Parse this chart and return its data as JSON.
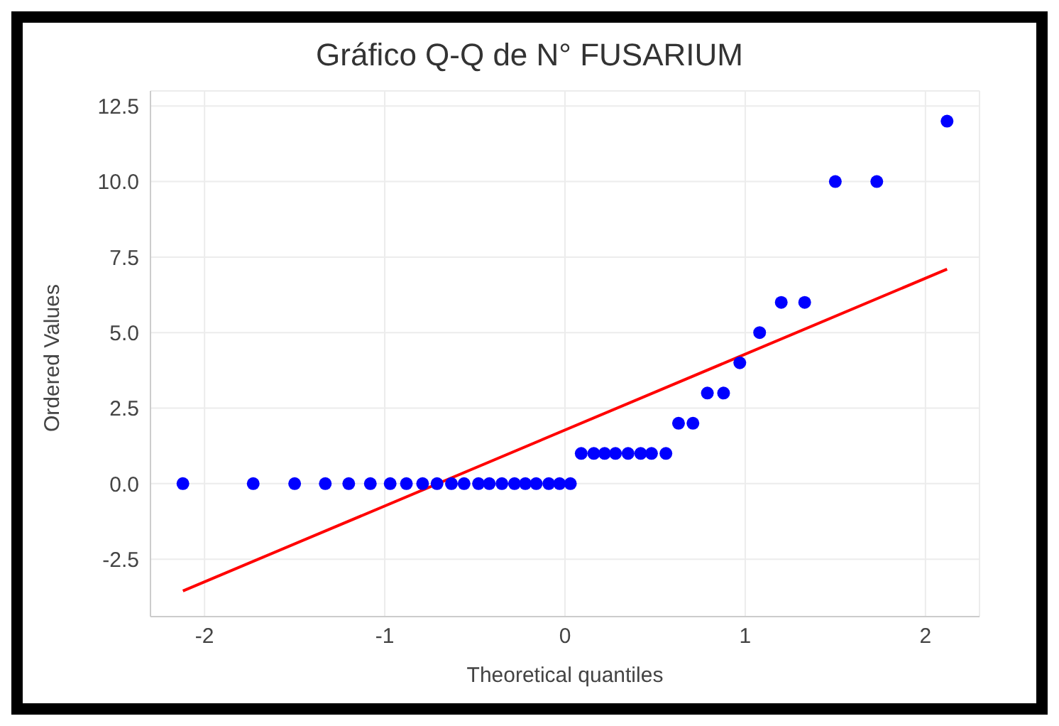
{
  "chart_data": {
    "type": "scatter",
    "title": "Gráfico Q-Q de N° FUSARIUM",
    "xlabel": "Theoretical quantiles",
    "ylabel": "Ordered Values",
    "series": [
      {
        "color": "#0000ff",
        "marker": "circle",
        "x": [
          -2.12,
          -1.73,
          -1.5,
          -1.33,
          -1.2,
          -1.08,
          -0.97,
          -0.88,
          -0.79,
          -0.71,
          -0.63,
          -0.56,
          -0.48,
          -0.42,
          -0.35,
          -0.28,
          -0.22,
          -0.16,
          -0.09,
          -0.03,
          0.03,
          0.09,
          0.16,
          0.22,
          0.28,
          0.35,
          0.42,
          0.48,
          0.56,
          0.63,
          0.71,
          0.79,
          0.88,
          0.97,
          1.08,
          1.2,
          1.33,
          1.5,
          1.73,
          2.12
        ],
        "values": [
          0,
          0,
          0,
          0,
          0,
          0,
          0,
          0,
          0,
          0,
          0,
          0,
          0,
          0,
          0,
          0,
          0,
          0,
          0,
          0,
          0,
          1,
          1,
          1,
          1,
          1,
          1,
          1,
          1,
          2,
          2,
          3,
          3,
          4,
          5,
          6,
          6,
          10,
          10,
          12
        ]
      },
      {
        "type": "line",
        "color": "#ff0000",
        "marker": "none",
        "x": [
          -2.12,
          2.12
        ],
        "values": [
          -3.55,
          7.1
        ]
      }
    ],
    "xlim": [
      -2.3,
      2.3
    ],
    "xticks": [
      -2,
      -1,
      0,
      1,
      2
    ],
    "ylim": [
      -4.4,
      13
    ],
    "yticks": [
      -2.5,
      {
        "value": 0,
        "label": "0.0"
      },
      2.5,
      {
        "value": 5,
        "label": "5.0"
      },
      7.5,
      {
        "value": 10,
        "label": "10.0"
      },
      12.5
    ],
    "grid": true,
    "legend": false
  }
}
